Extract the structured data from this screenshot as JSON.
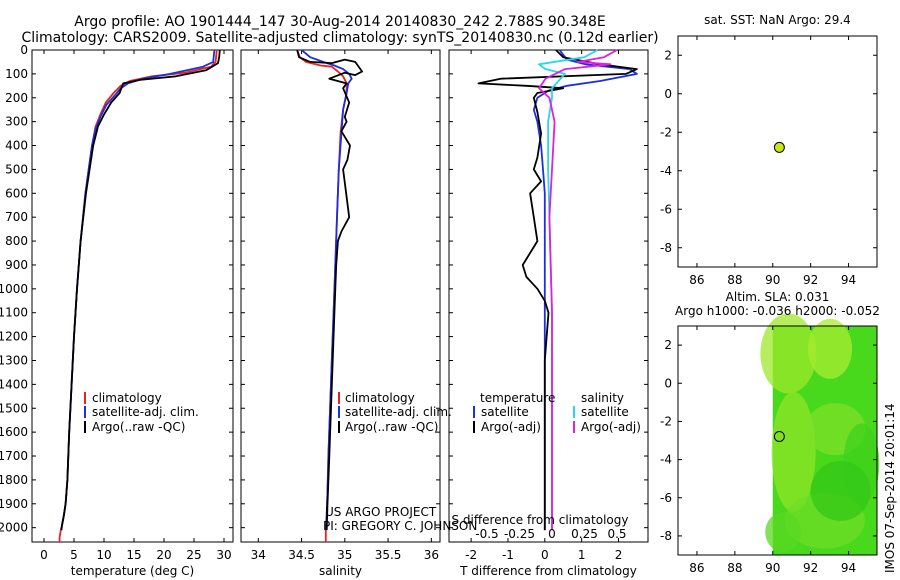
{
  "title_line1": "Argo profile: AO 1901444_147 30-Aug-2014 20140830_242 2.788S 90.348E",
  "title_line2": "Climatology: CARS2009. Satellite-adjusted climatology: synTS_20140830.nc (0.12d earlier)",
  "credit_project": "US ARGO PROJECT",
  "credit_pi": "PI: GREGORY C. JOHNSON",
  "timestamp": "IMOS 07-Sep-2014 20:01:14",
  "colors": {
    "climatology": "#e8221c",
    "satellite_adj": "#1a2fe0",
    "argo": "#000000",
    "salinity_satellite": "#27d7ee",
    "salinity_argo": "#e020e0",
    "marker": "#c8e614",
    "sla_field": "#48d81c"
  },
  "chart_data": [
    {
      "id": "temperature",
      "type": "line",
      "xlabel": "temperature (deg C)",
      "xlim": [
        -2,
        31.5
      ],
      "ylim": [
        0,
        2060
      ],
      "xticks": [
        "0",
        "5",
        "10",
        "15",
        "20",
        "25",
        "30"
      ],
      "xtick_values": [
        0,
        5,
        10,
        15,
        20,
        25,
        30
      ],
      "yticks": [
        "0",
        "100",
        "200",
        "300",
        "400",
        "500",
        "600",
        "700",
        "800",
        "900",
        "1000",
        "1100",
        "1200",
        "1300",
        "1400",
        "1500",
        "1600",
        "1700",
        "1800",
        "1900",
        "2000"
      ],
      "ytick_values": [
        0,
        100,
        200,
        300,
        400,
        500,
        600,
        700,
        800,
        900,
        1000,
        1100,
        1200,
        1300,
        1400,
        1500,
        1600,
        1700,
        1800,
        1900,
        2000
      ],
      "legend": [
        "climatology",
        "satellite-adj. clim.",
        "Argo(..raw -QC)"
      ],
      "series": [
        {
          "name": "climatology",
          "color": "#e8221c",
          "x": [
            28.8,
            28.6,
            27.8,
            23.5,
            18.0,
            14.3,
            12.8,
            11.6,
            10.3,
            9.4,
            8.6,
            8.0,
            6.9,
            6.1,
            5.5,
            5.0,
            4.6,
            4.2,
            3.9,
            3.6,
            3.3,
            3.0,
            2.8,
            2.6,
            2.6
          ],
          "y": [
            0,
            50,
            70,
            95,
            110,
            130,
            150,
            180,
            220,
            270,
            320,
            400,
            600,
            800,
            1000,
            1200,
            1400,
            1600,
            1800,
            1900,
            1950,
            1990,
            2010,
            2040,
            2060
          ]
        },
        {
          "name": "satellite-adj. clim.",
          "color": "#1a2fe0",
          "x": [
            28.4,
            28.2,
            26.5,
            21.0,
            16.5,
            14.0,
            12.8,
            11.8,
            10.4,
            9.4,
            8.6,
            8.0,
            6.9,
            6.1,
            5.5,
            5.0,
            4.6,
            4.2,
            3.9,
            3.6,
            3.3,
            3.0,
            2.9
          ],
          "y": [
            0,
            50,
            70,
            100,
            120,
            140,
            160,
            190,
            230,
            280,
            330,
            400,
            600,
            800,
            1000,
            1200,
            1400,
            1600,
            1800,
            1900,
            1950,
            1990,
            2010
          ]
        },
        {
          "name": "Argo(..raw -QC)",
          "color": "#000000",
          "x": [
            29.3,
            29.2,
            29.0,
            27.0,
            22.0,
            16.0,
            13.2,
            12.6,
            11.2,
            10.0,
            9.0,
            8.2,
            7.0,
            6.1,
            5.5,
            5.0,
            4.6,
            4.2,
            3.9,
            3.6,
            3.3,
            3.0,
            2.9
          ],
          "y": [
            0,
            30,
            55,
            85,
            110,
            125,
            140,
            180,
            220,
            270,
            320,
            400,
            600,
            800,
            1000,
            1200,
            1400,
            1600,
            1800,
            1900,
            1950,
            1990,
            2010
          ]
        }
      ]
    },
    {
      "id": "salinity",
      "type": "line",
      "xlabel": "salinity",
      "xlim": [
        33.8,
        36.1
      ],
      "ylim": [
        0,
        2060
      ],
      "xticks": [
        "34",
        "34.5",
        "35",
        "35.5",
        "36"
      ],
      "xtick_values": [
        34,
        34.5,
        35,
        35.5,
        36
      ],
      "legend": [
        "climatology",
        "satellite-adj. clim.",
        "Argo(..raw -QC)"
      ],
      "series": [
        {
          "name": "climatology",
          "color": "#e8221c",
          "x": [
            34.45,
            34.48,
            34.55,
            34.72,
            34.85,
            34.92,
            34.98,
            35.02,
            35.02,
            34.98,
            34.95,
            34.93,
            34.91,
            34.89,
            34.87,
            34.85,
            34.83,
            34.81,
            34.8,
            34.79,
            34.78,
            34.78
          ],
          "y": [
            0,
            30,
            50,
            65,
            70,
            90,
            110,
            140,
            180,
            250,
            350,
            500,
            700,
            900,
            1100,
            1300,
            1500,
            1700,
            1850,
            1950,
            2000,
            2060
          ]
        },
        {
          "name": "satellite-adj. clim.",
          "color": "#1a2fe0",
          "x": [
            34.5,
            34.6,
            34.75,
            34.88,
            34.98,
            35.05,
            35.08,
            35.04,
            35.02,
            34.98,
            34.96,
            34.93,
            34.91,
            34.89,
            34.87,
            34.85,
            34.83,
            34.81,
            34.8,
            34.79,
            34.78
          ],
          "y": [
            0,
            30,
            50,
            65,
            80,
            100,
            120,
            140,
            180,
            250,
            350,
            500,
            700,
            900,
            1100,
            1300,
            1500,
            1700,
            1850,
            1950,
            2010
          ]
        },
        {
          "name": "Argo(..raw -QC)",
          "color": "#000000",
          "x": [
            34.45,
            34.47,
            34.6,
            34.85,
            35.0,
            35.12,
            35.2,
            35.12,
            35.0,
            34.82,
            35.02,
            34.98,
            35.05,
            35.0,
            35.02,
            34.96,
            35.06,
            35.03,
            34.98,
            35.05,
            34.96,
            34.92,
            34.9,
            34.88,
            34.86,
            34.84,
            34.82,
            34.8,
            34.79
          ],
          "y": [
            0,
            30,
            50,
            55,
            40,
            50,
            90,
            105,
            95,
            120,
            140,
            160,
            220,
            280,
            300,
            340,
            400,
            460,
            500,
            700,
            760,
            800,
            900,
            1100,
            1300,
            1500,
            1700,
            1900,
            2010
          ]
        }
      ]
    },
    {
      "id": "difference",
      "type": "line",
      "xlabel": "T difference from climatology",
      "xlabel_top": "S difference from climatology",
      "xlim": [
        -2.6,
        2.8
      ],
      "ylim": [
        0,
        2060
      ],
      "xticks": [
        "-2",
        "-1",
        "0",
        "1",
        "2"
      ],
      "xtick_values": [
        -2,
        -1,
        0,
        1,
        2
      ],
      "xticks_salinity": [
        "-0.5",
        "-0.25",
        "0",
        "0.25",
        "0.5"
      ],
      "xticks_salinity_values": [
        -0.5,
        -0.25,
        0,
        0.25,
        0.5
      ],
      "legend_temperature_title": "temperature",
      "legend_salinity_title": "salinity",
      "legend": [
        "satellite",
        "Argo(-adj)",
        "satellite",
        "Argo(-adj)"
      ],
      "series": [
        {
          "name": "temperature satellite",
          "color": "#1a2fe0",
          "units": "T",
          "x": [
            0.4,
            0.6,
            1.1,
            2.3,
            2.5,
            1.5,
            0.6,
            0.1,
            -0.2,
            -0.3,
            -0.2,
            -0.1,
            -0.05,
            0.0,
            0.0,
            0.0,
            0.0,
            0.0,
            0.0,
            0.0,
            0.0
          ],
          "y": [
            0,
            40,
            60,
            80,
            100,
            130,
            150,
            170,
            200,
            250,
            300,
            400,
            500,
            600,
            800,
            1000,
            1200,
            1400,
            1600,
            1800,
            2010
          ]
        },
        {
          "name": "temperature Argo(-adj)",
          "color": "#000000",
          "units": "T",
          "x": [
            0.3,
            0.5,
            1.5,
            2.5,
            2.2,
            -1.2,
            -1.8,
            -0.5,
            0.5,
            -0.2,
            -0.3,
            -0.2,
            -0.1,
            -0.2,
            -0.3,
            -0.1,
            -0.4,
            -0.3,
            -0.2,
            -0.6,
            -0.5,
            -0.2,
            0.0,
            0.1,
            0.0,
            0.0,
            0.0,
            0.0
          ],
          "y": [
            0,
            30,
            60,
            80,
            100,
            120,
            140,
            150,
            160,
            180,
            200,
            260,
            350,
            450,
            500,
            550,
            600,
            700,
            800,
            900,
            950,
            1000,
            1050,
            1100,
            1300,
            1500,
            1700,
            2010
          ]
        },
        {
          "name": "salinity satellite",
          "color": "#27d7ee",
          "units": "S",
          "x": [
            0.35,
            0.25,
            -0.1,
            -0.05,
            0.1,
            0.05,
            0.0,
            0.0,
            -0.03,
            -0.03,
            -0.02,
            -0.01,
            0.0,
            0.0,
            0.0,
            0.0
          ],
          "y": [
            0,
            30,
            60,
            80,
            100,
            130,
            160,
            200,
            300,
            500,
            700,
            900,
            1100,
            1400,
            1700,
            2010
          ]
        },
        {
          "name": "salinity Argo(-adj)",
          "color": "#e020e0",
          "units": "S",
          "x": [
            0.5,
            0.4,
            0.2,
            0.45,
            0.1,
            -0.05,
            -0.1,
            -0.02,
            0.02,
            0.0,
            -0.02,
            -0.01,
            0.0,
            0.0,
            0.0
          ],
          "y": [
            0,
            30,
            50,
            60,
            80,
            120,
            160,
            200,
            300,
            500,
            700,
            900,
            1100,
            1400,
            2010
          ]
        }
      ]
    },
    {
      "id": "sst_map",
      "type": "scatter",
      "title": "sat. SST: NaN Argo: 29.4",
      "xlim": [
        85,
        95.5
      ],
      "ylim": [
        -9,
        3
      ],
      "xticks": [
        "86",
        "88",
        "90",
        "92",
        "94"
      ],
      "xtick_values": [
        86,
        88,
        90,
        92,
        94
      ],
      "yticks": [
        "2",
        "0",
        "-2",
        "-4",
        "-6",
        "-8"
      ],
      "ytick_values": [
        2,
        0,
        -2,
        -4,
        -6,
        -8
      ],
      "points": [
        {
          "x": 90.348,
          "y": -2.788,
          "color": "#c8e614"
        }
      ]
    },
    {
      "id": "sla_map",
      "type": "heatmap",
      "title_line1": "Altim. SLA: 0.031",
      "title_line2": "Argo h1000: -0.036 h2000: -0.052",
      "xlim": [
        85,
        95.5
      ],
      "ylim": [
        -9,
        3
      ],
      "xticks": [
        "86",
        "88",
        "90",
        "92",
        "94"
      ],
      "xtick_values": [
        86,
        88,
        90,
        92,
        94
      ],
      "yticks": [
        "2",
        "0",
        "-2",
        "-4",
        "-6",
        "-8"
      ],
      "ytick_values": [
        2,
        0,
        -2,
        -4,
        -6,
        -8
      ],
      "field_x_range": [
        90,
        95.5
      ],
      "points": [
        {
          "x": 90.348,
          "y": -2.788
        }
      ]
    }
  ]
}
